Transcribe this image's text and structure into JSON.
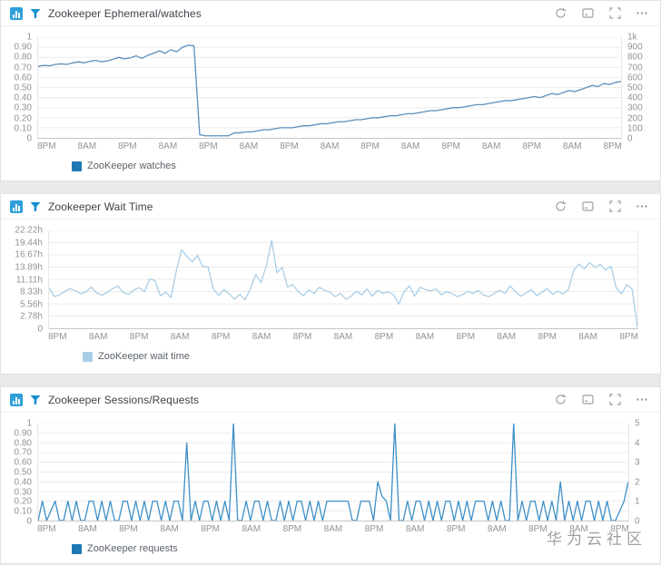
{
  "watermark": "华为云社区",
  "colors": {
    "badge": "#2e9fd9",
    "filter": "#1790d0",
    "control": "#9aa0a6",
    "grid": "#ececec",
    "axis": "#c6c6c6"
  },
  "icons": {
    "panel_type": "bar-chart-icon",
    "filter": "filter-icon",
    "controls": [
      "refresh-icon",
      "collapse-icon",
      "fullscreen-icon",
      "more-icon"
    ]
  },
  "panels": [
    {
      "title": "Zookeeper Ephemeral/watches"
    },
    {
      "title": "Zookeeper Wait Time"
    },
    {
      "title": "Zookeeper Sessions/Requests"
    }
  ],
  "chart_data": [
    {
      "type": "line",
      "title": "Zookeeper Ephemeral/watches",
      "ymin": 0,
      "ymax": 1,
      "left_ticks": [
        "1",
        "0.90",
        "0.80",
        "0.70",
        "0.60",
        "0.50",
        "0.40",
        "0.30",
        "0.20",
        "0.10",
        "0"
      ],
      "right_ticks": [
        "1k",
        "900",
        "800",
        "700",
        "600",
        "500",
        "400",
        "300",
        "200",
        "100",
        "0"
      ],
      "x_labels": [
        "8PM",
        "8AM",
        "8PM",
        "8AM",
        "8PM",
        "8AM",
        "8PM",
        "8AM",
        "8PM",
        "8AM",
        "8PM",
        "8AM",
        "8PM",
        "8AM",
        "8PM"
      ],
      "legend": [
        {
          "label": "ZooKeeper watches",
          "color": "#1f77b4"
        }
      ],
      "series": [
        {
          "name": "ZooKeeper watches",
          "color": "#5b8fbc",
          "points": [
            0.71,
            0.72,
            0.715,
            0.73,
            0.735,
            0.73,
            0.745,
            0.755,
            0.745,
            0.76,
            0.77,
            0.755,
            0.765,
            0.78,
            0.8,
            0.785,
            0.795,
            0.815,
            0.79,
            0.82,
            0.84,
            0.865,
            0.84,
            0.875,
            0.855,
            0.9,
            0.92,
            0.915,
            0.03,
            0.02,
            0.02,
            0.02,
            0.02,
            0.02,
            0.05,
            0.05,
            0.06,
            0.06,
            0.07,
            0.08,
            0.08,
            0.09,
            0.1,
            0.1,
            0.1,
            0.11,
            0.12,
            0.12,
            0.13,
            0.14,
            0.14,
            0.15,
            0.16,
            0.16,
            0.17,
            0.18,
            0.18,
            0.19,
            0.2,
            0.2,
            0.21,
            0.22,
            0.22,
            0.23,
            0.24,
            0.24,
            0.25,
            0.26,
            0.27,
            0.27,
            0.28,
            0.29,
            0.3,
            0.3,
            0.31,
            0.32,
            0.33,
            0.33,
            0.34,
            0.35,
            0.36,
            0.37,
            0.37,
            0.38,
            0.39,
            0.4,
            0.41,
            0.4,
            0.42,
            0.44,
            0.43,
            0.45,
            0.47,
            0.46,
            0.48,
            0.5,
            0.52,
            0.51,
            0.54,
            0.53,
            0.55,
            0.56
          ]
        }
      ]
    },
    {
      "type": "line",
      "title": "Zookeeper Wait Time",
      "ymin": 0,
      "ymax": 22.22,
      "left_ticks": [
        "22.22h",
        "19.44h",
        "16.67h",
        "13.89h",
        "11.11h",
        "8.33h",
        "5.56h",
        "2.78h",
        "0"
      ],
      "right_ticks": [],
      "x_labels": [
        "8PM",
        "8AM",
        "8PM",
        "8AM",
        "8PM",
        "8AM",
        "8PM",
        "8AM",
        "8PM",
        "8AM",
        "8PM",
        "8AM",
        "8PM",
        "8AM",
        "8PM"
      ],
      "legend": [
        {
          "label": "ZooKeeper wait time",
          "color": "#a9cee7"
        }
      ],
      "series": [
        {
          "name": "ZooKeeper wait time",
          "color": "#a9cee7",
          "points": [
            9.2,
            7.2,
            7.6,
            8.4,
            9.0,
            8.5,
            7.8,
            8.3,
            9.3,
            8.0,
            7.5,
            8.2,
            9.0,
            9.6,
            8.1,
            7.7,
            8.7,
            9.2,
            8.3,
            11.2,
            10.8,
            7.4,
            8.2,
            7.0,
            12.9,
            17.8,
            16.3,
            15.1,
            16.5,
            14.0,
            13.9,
            8.9,
            7.5,
            8.8,
            7.8,
            6.6,
            7.7,
            6.5,
            9.0,
            12.2,
            10.4,
            14.2,
            19.9,
            12.6,
            13.8,
            9.4,
            9.9,
            8.3,
            7.4,
            8.7,
            7.9,
            9.3,
            8.6,
            8.2,
            7.2,
            7.9,
            6.6,
            7.3,
            8.4,
            7.6,
            8.9,
            7.3,
            8.6,
            7.9,
            8.3,
            7.6,
            5.5,
            8.3,
            9.6,
            7.3,
            9.3,
            8.8,
            8.5,
            8.9,
            7.6,
            8.3,
            7.9,
            7.2,
            7.6,
            8.4,
            7.9,
            8.6,
            7.5,
            7.2,
            7.9,
            8.6,
            7.9,
            9.6,
            8.3,
            7.3,
            8.0,
            8.8,
            7.4,
            8.2,
            9.0,
            7.7,
            8.4,
            7.8,
            8.8,
            13.2,
            14.6,
            13.5,
            14.9,
            13.8,
            14.5,
            13.2,
            14.1,
            9.2,
            7.8,
            9.9,
            8.9,
            0.3
          ]
        }
      ]
    },
    {
      "type": "line",
      "title": "Zookeeper Sessions/Requests",
      "ymin": 0,
      "ymax": 1,
      "left_ticks": [
        "1",
        "0.90",
        "0.80",
        "0.70",
        "0.60",
        "0.50",
        "0.40",
        "0.30",
        "0.20",
        "0.10",
        "0"
      ],
      "right_ticks": [
        "5",
        "4",
        "3",
        "2",
        "1",
        "0"
      ],
      "x_labels": [
        "8PM",
        "8AM",
        "8PM",
        "8AM",
        "8PM",
        "8AM",
        "8PM",
        "8AM",
        "8PM",
        "8AM",
        "8PM",
        "8AM",
        "8PM",
        "8AM",
        "8PM"
      ],
      "legend": [
        {
          "label": "ZooKeeper requests",
          "color": "#1f77b4"
        }
      ],
      "series": [
        {
          "name": "ZooKeeper requests",
          "color": "#3d8fc7",
          "points": [
            0,
            0.2,
            0,
            0.1,
            0.2,
            0,
            0,
            0.2,
            0,
            0.2,
            0,
            0,
            0.2,
            0.2,
            0,
            0.2,
            0,
            0.2,
            0,
            0,
            0.2,
            0.2,
            0,
            0.2,
            0,
            0.2,
            0,
            0.2,
            0.2,
            0,
            0.2,
            0,
            0.2,
            0.2,
            0,
            0.8,
            0,
            0.2,
            0,
            0.2,
            0.2,
            0,
            0.2,
            0,
            0.2,
            0,
            1,
            0,
            0,
            0.2,
            0,
            0.2,
            0.2,
            0,
            0.2,
            0,
            0,
            0.2,
            0,
            0.2,
            0,
            0.2,
            0.2,
            0,
            0.2,
            0,
            0.2,
            0,
            0.2,
            0.2,
            0.2,
            0.2,
            0.2,
            0.2,
            0,
            0,
            0.2,
            0.2,
            0.2,
            0,
            0.4,
            0.25,
            0.2,
            0,
            1,
            0,
            0,
            0.2,
            0,
            0.2,
            0.2,
            0,
            0.2,
            0,
            0.2,
            0,
            0.2,
            0.2,
            0,
            0.2,
            0,
            0.2,
            0,
            0.2,
            0.2,
            0.2,
            0,
            0.2,
            0,
            0.2,
            0,
            0,
            1,
            0,
            0.2,
            0,
            0.2,
            0.2,
            0,
            0.2,
            0,
            0.2,
            0,
            0.4,
            0,
            0.2,
            0,
            0.2,
            0,
            0.2,
            0.2,
            0,
            0.2,
            0,
            0.2,
            0,
            0,
            0.1,
            0.2,
            0.4
          ]
        }
      ]
    }
  ]
}
